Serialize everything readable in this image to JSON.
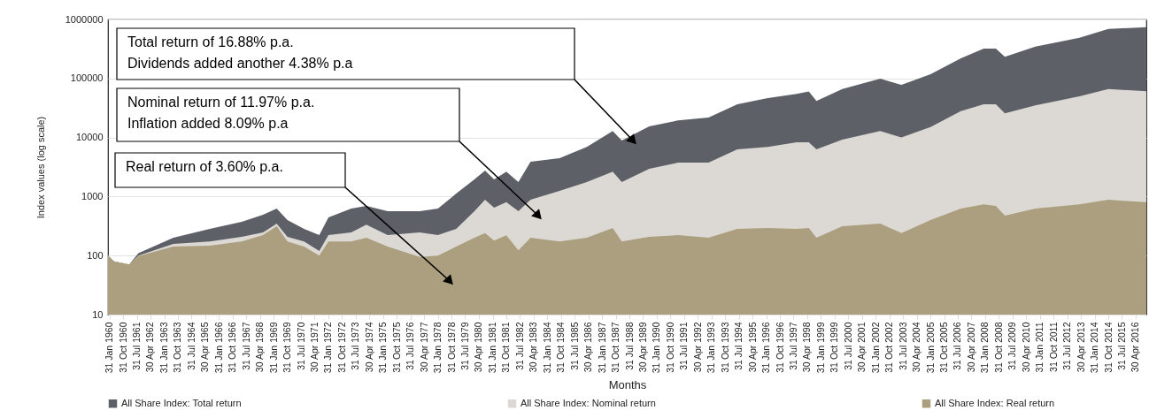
{
  "chart_data": {
    "type": "area",
    "xlabel": "Months",
    "ylabel": "Index values (log scale)",
    "x": [
      "1960-01",
      "1960-05",
      "1961-03",
      "1961-09",
      "1963-08",
      "1965-08",
      "1967-05",
      "1968-07",
      "1969-04",
      "1969-11",
      "1970-10",
      "1971-08",
      "1972-02",
      "1973-05",
      "1974-03",
      "1975-05",
      "1977-02",
      "1978-02",
      "1979-02",
      "1980-02",
      "1980-09",
      "1981-03",
      "1981-11",
      "1982-07",
      "1983-03",
      "1984-10",
      "1986-04",
      "1987-09",
      "1988-03",
      "1989-09",
      "1991-04",
      "1992-12",
      "1994-07",
      "1996-03",
      "1997-10",
      "1998-06",
      "1998-11",
      "2000-04",
      "2002-05",
      "2003-07",
      "2005-02",
      "2006-10",
      "2008-01",
      "2008-09",
      "2009-03",
      "2010-11",
      "2013-04",
      "2014-11",
      "2016-12"
    ],
    "series": [
      {
        "name": "All Share Index: Total return",
        "color": "#5d6167",
        "values": [
          100,
          80,
          71,
          110,
          200,
          283,
          373,
          490,
          625,
          400,
          283,
          222,
          443,
          625,
          694,
          563,
          563,
          625,
          1120,
          1950,
          2760,
          1950,
          2650,
          1760,
          3900,
          4470,
          6950,
          12900,
          8900,
          15500,
          19500,
          21800,
          36500,
          46500,
          55000,
          60000,
          41700,
          66000,
          99000,
          78000,
          118000,
          219000,
          320000,
          320000,
          234000,
          345000,
          490000,
          690000,
          740000
        ]
      },
      {
        "name": "All Share Index: Nominal return",
        "color": "#dcd9d4",
        "values": [
          100,
          80,
          71,
          100,
          158,
          174,
          208,
          247,
          347,
          208,
          174,
          120,
          222,
          247,
          335,
          222,
          247,
          222,
          283,
          563,
          880,
          650,
          800,
          563,
          880,
          1250,
          1760,
          2650,
          1760,
          2950,
          3750,
          3750,
          6300,
          6950,
          8300,
          8300,
          6300,
          9200,
          12900,
          10000,
          15000,
          28000,
          36500,
          36500,
          25600,
          35000,
          50000,
          66000,
          61000
        ]
      },
      {
        "name": "All Share Index: Real return",
        "color": "#ab9f7f",
        "values": [
          100,
          80,
          71,
          98,
          142,
          147,
          174,
          222,
          315,
          174,
          142,
          100,
          174,
          174,
          200,
          142,
          95,
          100,
          142,
          200,
          240,
          180,
          220,
          123,
          200,
          174,
          200,
          293,
          174,
          208,
          222,
          200,
          283,
          293,
          283,
          293,
          200,
          315,
          347,
          240,
          400,
          625,
          740,
          694,
          475,
          625,
          740,
          880,
          800
        ]
      }
    ],
    "xlim": [
      "1960-01",
      "2016-12"
    ],
    "xticks": [
      {
        "value": "1960-01-31",
        "label": "31 Jan 1960"
      },
      {
        "value": "1960-10-31",
        "label": "31 Oct 1960"
      },
      {
        "value": "1961-07-31",
        "label": "31 Jul 1961"
      },
      {
        "value": "1962-04-30",
        "label": "30 Apr 1962"
      },
      {
        "value": "1963-01-31",
        "label": "31 Jan 1963"
      },
      {
        "value": "1963-10-31",
        "label": "31 Oct 1963"
      },
      {
        "value": "1964-07-31",
        "label": "31 Jul 1964"
      },
      {
        "value": "1965-04-30",
        "label": "30 Apr 1965"
      },
      {
        "value": "1966-01-31",
        "label": "31 Jan 1966"
      },
      {
        "value": "1966-10-31",
        "label": "31 Oct 1966"
      },
      {
        "value": "1967-07-31",
        "label": "31 Jul 1967"
      },
      {
        "value": "1968-04-30",
        "label": "30 Apr 1968"
      },
      {
        "value": "1969-01-31",
        "label": "31 Jan 1969"
      },
      {
        "value": "1969-10-31",
        "label": "31 Oct 1969"
      },
      {
        "value": "1970-07-31",
        "label": "31 Jul 1970"
      },
      {
        "value": "1971-04-30",
        "label": "30 Apr 1971"
      },
      {
        "value": "1972-01-31",
        "label": "31 Jan 1972"
      },
      {
        "value": "1972-10-31",
        "label": "31 Oct 1972"
      },
      {
        "value": "1973-07-31",
        "label": "31 Jul 1973"
      },
      {
        "value": "1974-04-30",
        "label": "30 Apr 1974"
      },
      {
        "value": "1975-01-31",
        "label": "31 Jan 1975"
      },
      {
        "value": "1975-10-31",
        "label": "31 Oct 1975"
      },
      {
        "value": "1976-07-31",
        "label": "31 Jul 1976"
      },
      {
        "value": "1977-04-30",
        "label": "30 Apr 1977"
      },
      {
        "value": "1978-01-31",
        "label": "31 Jan 1978"
      },
      {
        "value": "1978-10-31",
        "label": "31 Oct 1978"
      },
      {
        "value": "1979-07-31",
        "label": "31 Jul 1979"
      },
      {
        "value": "1980-04-30",
        "label": "30 Apr 1980"
      },
      {
        "value": "1981-01-31",
        "label": "31 Jan 1981"
      },
      {
        "value": "1981-10-31",
        "label": "31 Oct 1981"
      },
      {
        "value": "1982-07-31",
        "label": "31 Jul 1982"
      },
      {
        "value": "1983-04-30",
        "label": "30 Apr 1983"
      },
      {
        "value": "1984-01-31",
        "label": "31 Jan 1984"
      },
      {
        "value": "1984-10-31",
        "label": "31 Oct 1984"
      },
      {
        "value": "1985-07-31",
        "label": "31 Jul 1985"
      },
      {
        "value": "1986-04-30",
        "label": "30 Apr 1986"
      },
      {
        "value": "1987-01-31",
        "label": "31 Jan 1987"
      },
      {
        "value": "1987-10-31",
        "label": "31 Oct 1987"
      },
      {
        "value": "1988-07-31",
        "label": "31 Jul 1988"
      },
      {
        "value": "1989-04-30",
        "label": "30 Apr 1989"
      },
      {
        "value": "1990-01-31",
        "label": "31 Jan 1990"
      },
      {
        "value": "1990-10-31",
        "label": "31 Oct 1990"
      },
      {
        "value": "1991-07-31",
        "label": "31 Jul 1991"
      },
      {
        "value": "1992-04-30",
        "label": "30 Apr 1992"
      },
      {
        "value": "1993-01-31",
        "label": "31 Jan 1993"
      },
      {
        "value": "1993-10-31",
        "label": "31 Oct 1993"
      },
      {
        "value": "1994-07-31",
        "label": "31 Jul 1994"
      },
      {
        "value": "1995-04-30",
        "label": "30 Apr 1995"
      },
      {
        "value": "1996-01-31",
        "label": "31 Jan 1996"
      },
      {
        "value": "1996-10-31",
        "label": "31 Oct 1996"
      },
      {
        "value": "1997-07-31",
        "label": "31 Jul 1997"
      },
      {
        "value": "1998-04-30",
        "label": "30 Apr 1998"
      },
      {
        "value": "1999-01-31",
        "label": "31 Jan 1999"
      },
      {
        "value": "1999-10-31",
        "label": "31 Oct 1999"
      },
      {
        "value": "2000-07-31",
        "label": "31 Jul 2000"
      },
      {
        "value": "2001-04-30",
        "label": "30 Apr 2001"
      },
      {
        "value": "2002-01-31",
        "label": "31 Jan 2002"
      },
      {
        "value": "2002-10-31",
        "label": "31 Oct 2002"
      },
      {
        "value": "2003-07-31",
        "label": "31 Jul 2003"
      },
      {
        "value": "2004-04-30",
        "label": "30 Apr 2004"
      },
      {
        "value": "2005-01-31",
        "label": "31 Jan 2005"
      },
      {
        "value": "2005-10-31",
        "label": "31 Oct 2005"
      },
      {
        "value": "2006-07-31",
        "label": "31 Jul 2006"
      },
      {
        "value": "2007-04-30",
        "label": "30 Apr 2007"
      },
      {
        "value": "2008-01-31",
        "label": "31 Jan 2008"
      },
      {
        "value": "2008-10-31",
        "label": "31 Oct 2008"
      },
      {
        "value": "2009-07-31",
        "label": "31 Jul 2009"
      },
      {
        "value": "2010-04-30",
        "label": "30 Apr 2010"
      },
      {
        "value": "2011-01-31",
        "label": "31 Jan 2011"
      },
      {
        "value": "2011-10-31",
        "label": "31 Oct 2011"
      },
      {
        "value": "2012-07-31",
        "label": "31 Jul 2012"
      },
      {
        "value": "2013-04-30",
        "label": "30 Apr 2013"
      },
      {
        "value": "2014-01-31",
        "label": "31 Jan 2014"
      },
      {
        "value": "2014-10-31",
        "label": "31 Oct 2014"
      },
      {
        "value": "2015-07-31",
        "label": "31 Jul 2015"
      },
      {
        "value": "2016-04-30",
        "label": "30 Apr 2016"
      }
    ],
    "ylim": [
      10,
      1000000
    ],
    "yticks": [
      10,
      100,
      1000,
      10000,
      100000,
      1000000
    ],
    "log": "y",
    "grid": "y",
    "legend": "bottom",
    "annotations": [
      "Total return of 16.88% p.a.\nDividends added another 4.38% p.a",
      "Nominal return of 11.97% p.a.\nInflation added 8.09% p.a",
      "Real return of 3.60% p.a."
    ]
  }
}
